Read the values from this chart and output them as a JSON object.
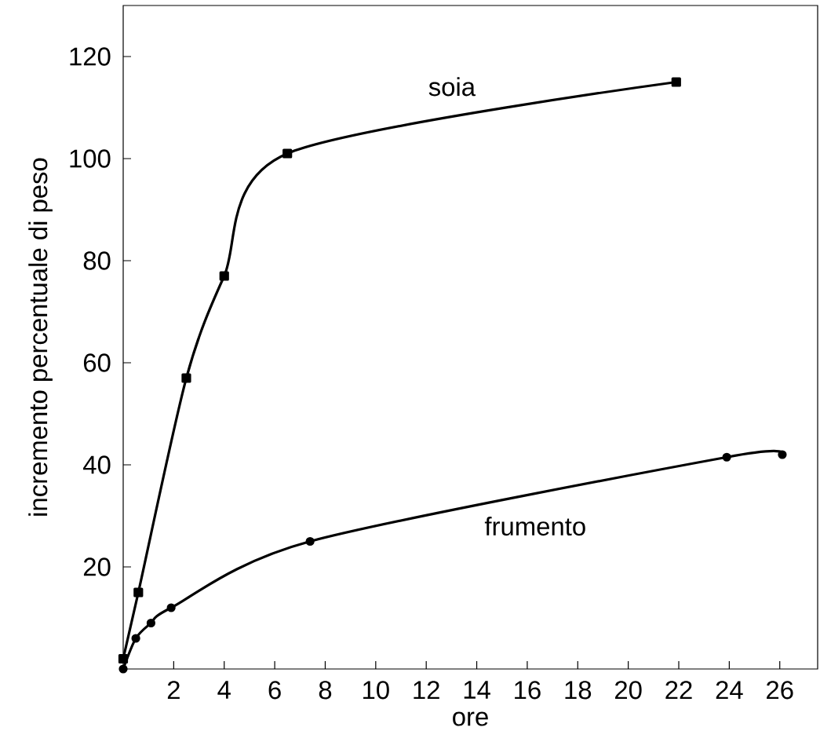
{
  "chart_data": {
    "type": "line",
    "xlabel": "ore",
    "ylabel": "incremento percentuale di peso",
    "xlim": [
      0,
      27.5
    ],
    "ylim": [
      0,
      130
    ],
    "xticks": [
      2,
      4,
      6,
      8,
      10,
      12,
      14,
      16,
      18,
      20,
      22,
      24,
      26
    ],
    "yticks": [
      20,
      40,
      60,
      80,
      100,
      120
    ],
    "legend": false,
    "grid": false,
    "series": [
      {
        "name": "soia",
        "color": "#000000",
        "marker": "square",
        "x": [
          0,
          0.6,
          2.5,
          4,
          6.5,
          21.9
        ],
        "values": [
          2,
          15,
          57,
          77,
          101,
          115
        ]
      },
      {
        "name": "frumento",
        "color": "#000000",
        "marker": "circle",
        "x": [
          0,
          0.5,
          1.1,
          1.9,
          7.4,
          23.9,
          26.1
        ],
        "values": [
          0,
          6,
          9,
          12,
          25,
          41.5,
          42
        ]
      }
    ]
  }
}
